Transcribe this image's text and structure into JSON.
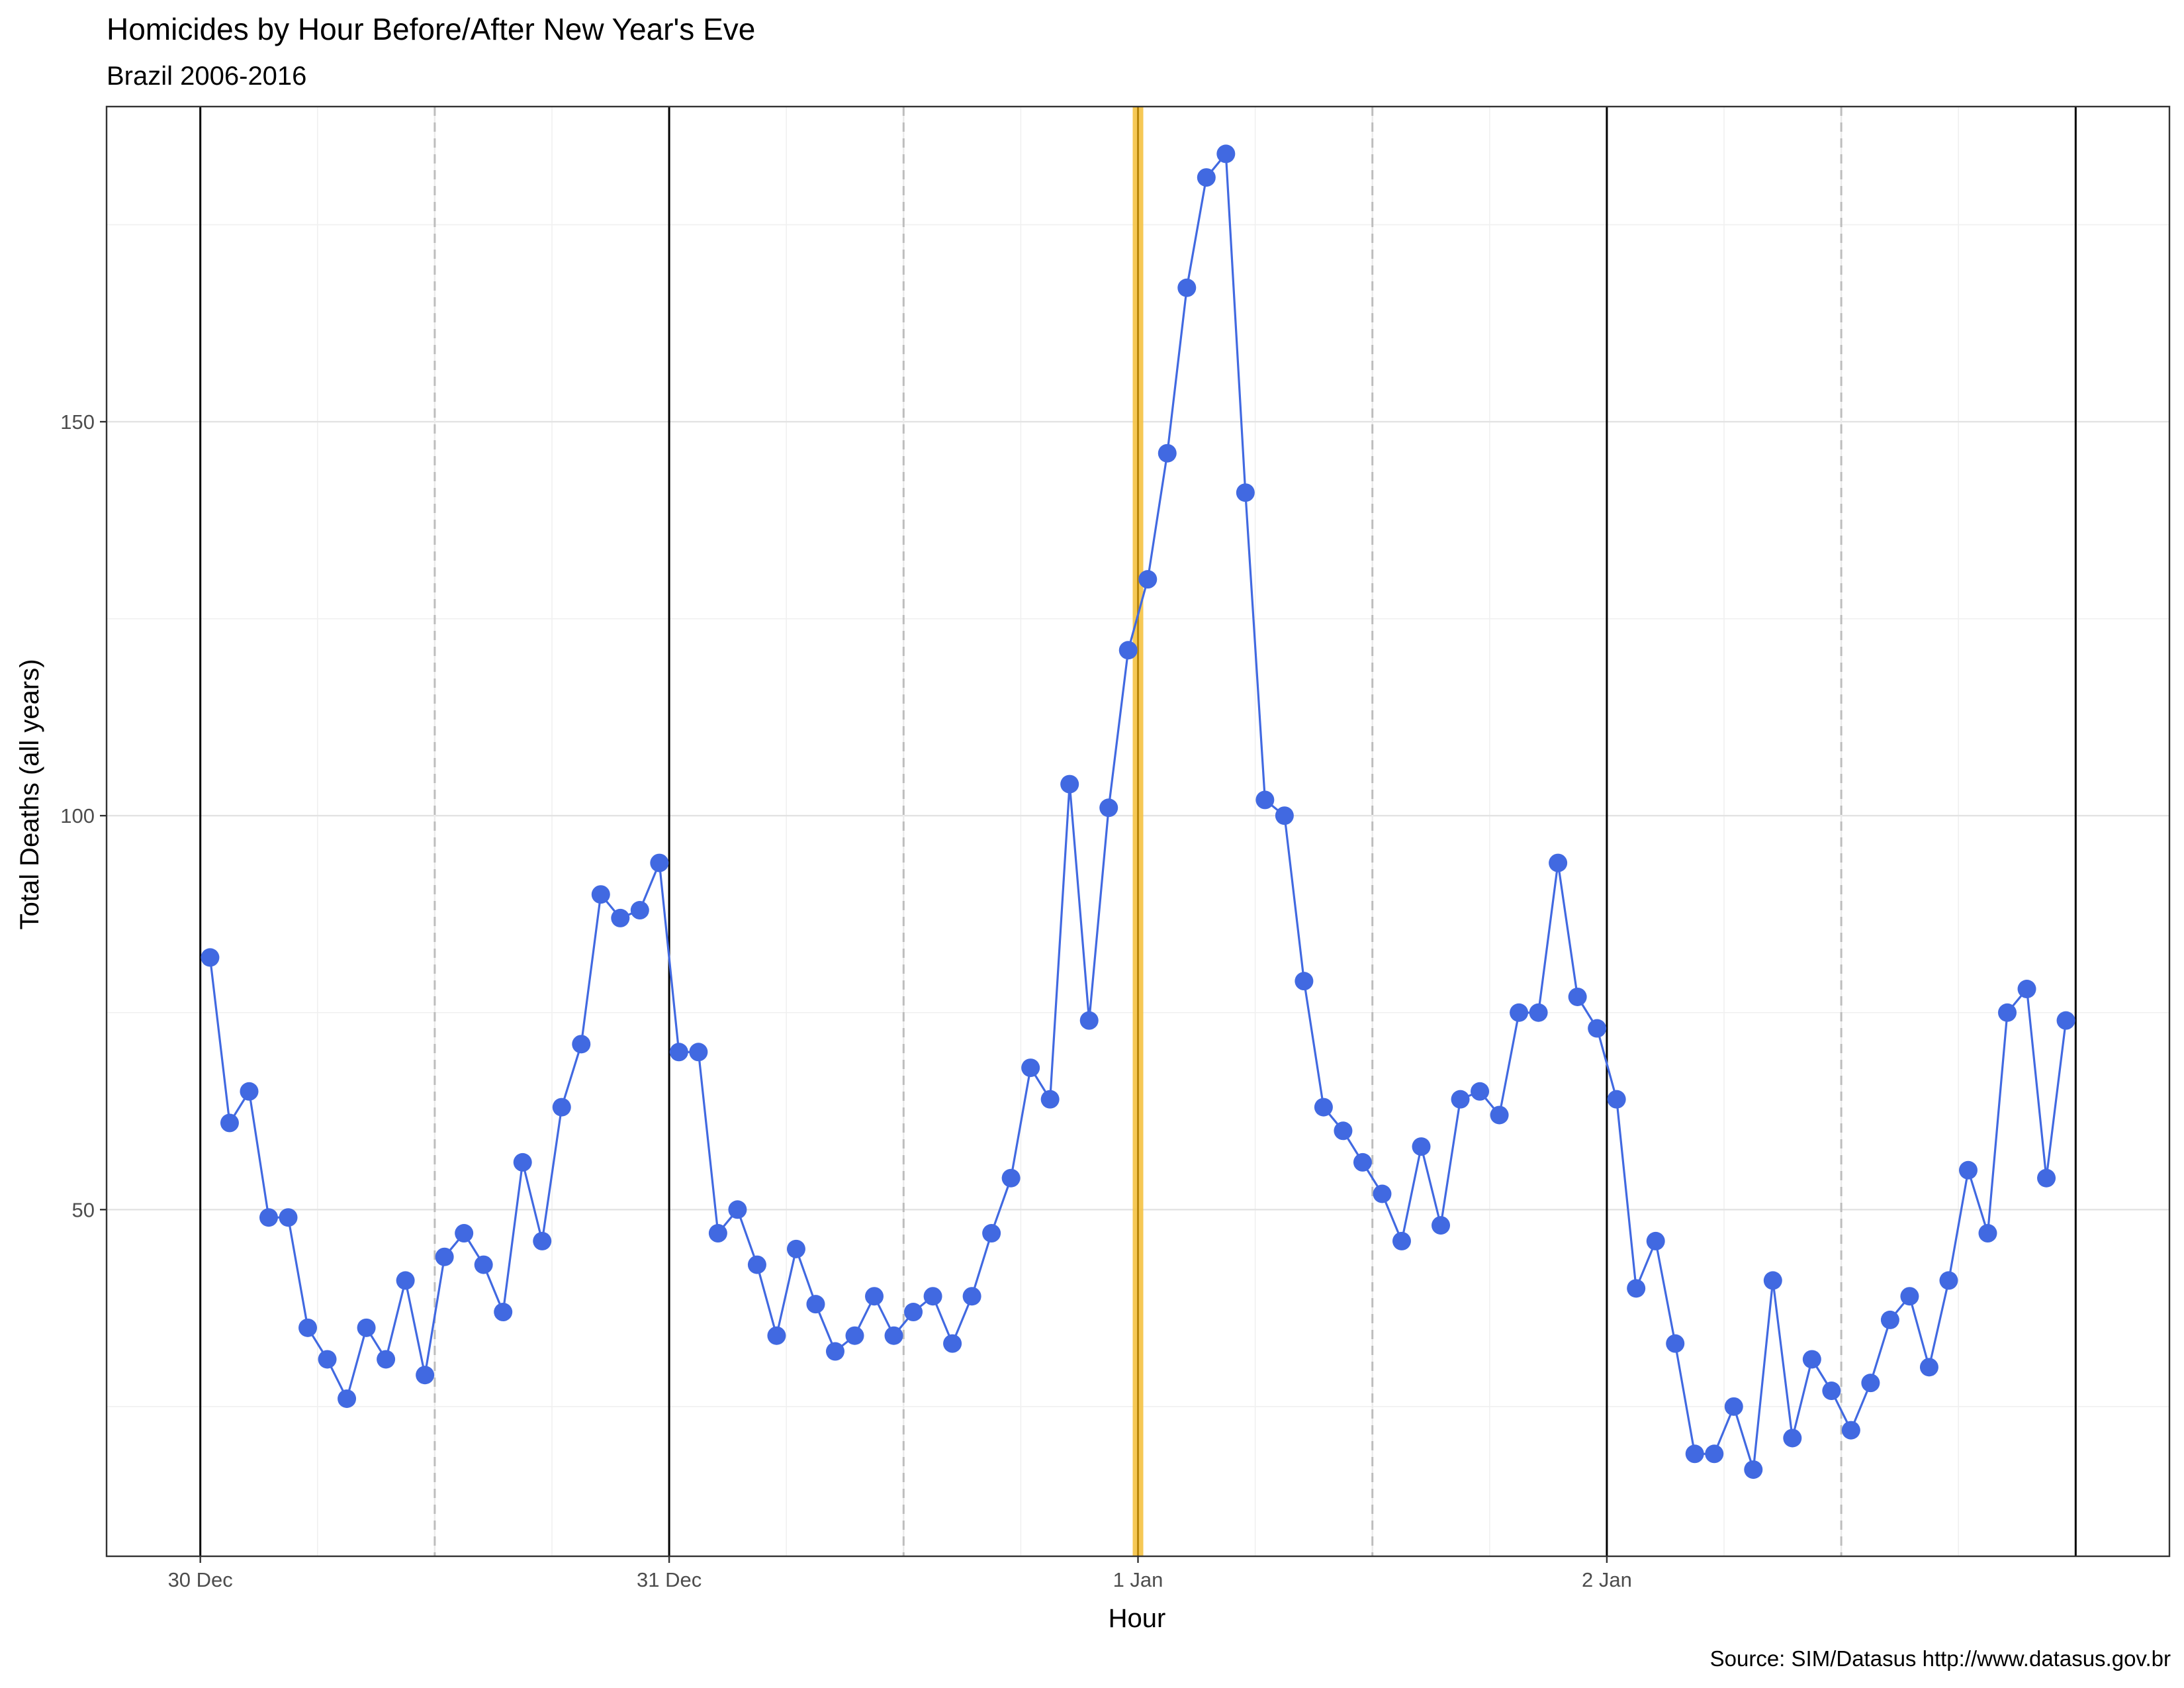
{
  "chart_data": {
    "type": "line",
    "title": "Homicides by Hour Before/After New Year's Eve",
    "subtitle": "Brazil 2006-2016",
    "xlabel": "Hour",
    "ylabel": "Total Deaths (all years)",
    "caption": "Source: SIM/Datasus http://www.datasus.gov.br",
    "x_tick_labels": [
      "30 Dec",
      "31 Dec",
      "1 Jan",
      "2 Jan"
    ],
    "y_ticks": [
      50,
      100,
      150
    ],
    "xlim_hours_from_30dec": [
      -4.8,
      100.8
    ],
    "ylim": [
      6,
      190
    ],
    "day_boundaries_hours": [
      0,
      24,
      48,
      72,
      96
    ],
    "noon_dashed_lines_hours": [
      12,
      36,
      60,
      84
    ],
    "highlight_hour": 48,
    "series": [
      {
        "color": "#4169E1",
        "x_hours_from_30dec": [
          0.5,
          1.5,
          2.5,
          3.5,
          4.5,
          5.5,
          6.5,
          7.5,
          8.5,
          9.5,
          10.5,
          11.5,
          12.5,
          13.5,
          14.5,
          15.5,
          16.5,
          17.5,
          18.5,
          19.5,
          20.5,
          21.5,
          22.5,
          23.5,
          24.5,
          25.5,
          26.5,
          27.5,
          28.5,
          29.5,
          30.5,
          31.5,
          32.5,
          33.5,
          34.5,
          35.5,
          36.5,
          37.5,
          38.5,
          39.5,
          40.5,
          41.5,
          42.5,
          43.5,
          44.5,
          45.5,
          46.5,
          47.5,
          48.5,
          49.5,
          50.5,
          51.5,
          52.5,
          53.5,
          54.5,
          55.5,
          56.5,
          57.5,
          58.5,
          59.5,
          60.5,
          61.5,
          62.5,
          63.5,
          64.5,
          65.5,
          66.5,
          67.5,
          68.5,
          69.5,
          70.5,
          71.5,
          72.5,
          73.5,
          74.5,
          75.5,
          76.5,
          77.5,
          78.5,
          79.5,
          80.5,
          81.5,
          82.5,
          83.5,
          84.5,
          85.5,
          86.5,
          87.5,
          88.5,
          89.5,
          90.5,
          91.5,
          92.5,
          93.5,
          94.5,
          95.5
        ],
        "values": [
          82,
          61,
          65,
          49,
          49,
          35,
          31,
          26,
          35,
          31,
          41,
          29,
          44,
          47,
          43,
          37,
          56,
          46,
          63,
          71,
          90,
          87,
          88,
          94,
          70,
          70,
          47,
          50,
          43,
          34,
          45,
          38,
          32,
          34,
          39,
          34,
          37,
          39,
          33,
          39,
          47,
          54,
          68,
          64,
          104,
          74,
          101,
          121,
          130,
          146,
          167,
          181,
          184,
          141,
          102,
          100,
          79,
          63,
          60,
          56,
          52,
          46,
          58,
          48,
          64,
          65,
          62,
          75,
          75,
          94,
          77,
          73,
          64,
          40,
          46,
          33,
          19,
          19,
          25,
          17,
          41,
          21,
          31,
          27,
          22,
          28,
          36,
          39,
          30,
          41,
          55,
          47,
          75,
          78,
          54,
          74
        ]
      }
    ]
  }
}
